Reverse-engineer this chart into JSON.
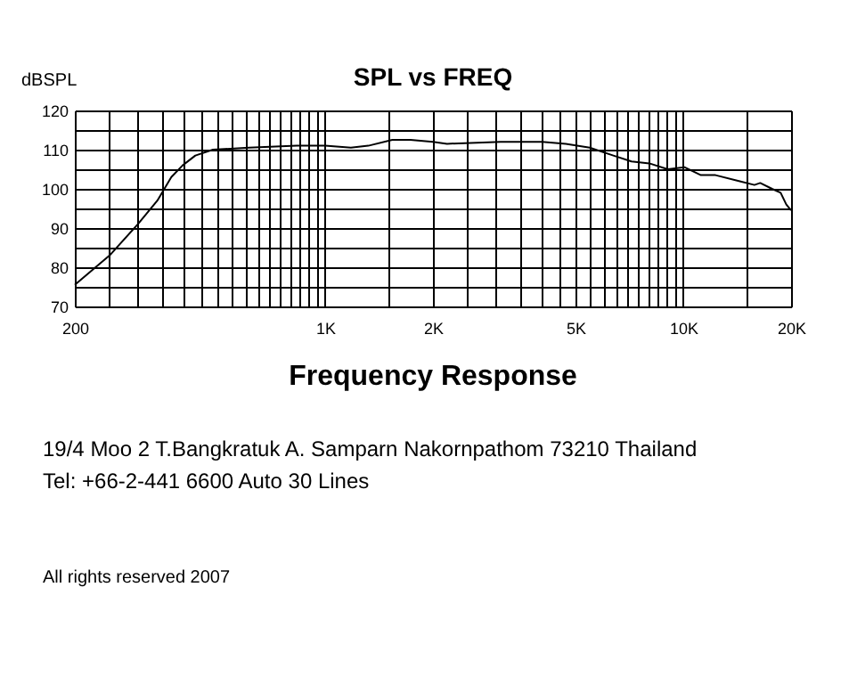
{
  "chart_data": {
    "type": "line",
    "title": "SPL vs FREQ",
    "ylabel": "dBSPL",
    "xlabel": "Frequency Response",
    "log": "x",
    "grid": true,
    "marker": "none",
    "line_style": "solid",
    "xlim": [
      200,
      20000
    ],
    "ylim": [
      70,
      120
    ],
    "xticks": [
      {
        "value": 200,
        "label": "200"
      },
      {
        "value": 250,
        "label": null
      },
      {
        "value": 300,
        "label": null
      },
      {
        "value": 350,
        "label": null
      },
      {
        "value": 400,
        "label": null
      },
      {
        "value": 450,
        "label": null
      },
      {
        "value": 500,
        "label": null
      },
      {
        "value": 550,
        "label": null
      },
      {
        "value": 600,
        "label": null
      },
      {
        "value": 650,
        "label": null
      },
      {
        "value": 700,
        "label": null
      },
      {
        "value": 750,
        "label": null
      },
      {
        "value": 800,
        "label": null
      },
      {
        "value": 850,
        "label": null
      },
      {
        "value": 900,
        "label": null
      },
      {
        "value": 950,
        "label": null
      },
      {
        "value": 1000,
        "label": "1K"
      },
      {
        "value": 1500,
        "label": null
      },
      {
        "value": 2000,
        "label": "2K"
      },
      {
        "value": 2500,
        "label": null
      },
      {
        "value": 3000,
        "label": null
      },
      {
        "value": 3500,
        "label": null
      },
      {
        "value": 4000,
        "label": null
      },
      {
        "value": 4500,
        "label": null
      },
      {
        "value": 5000,
        "label": "5K"
      },
      {
        "value": 5500,
        "label": null
      },
      {
        "value": 6000,
        "label": null
      },
      {
        "value": 6500,
        "label": null
      },
      {
        "value": 7000,
        "label": null
      },
      {
        "value": 7500,
        "label": null
      },
      {
        "value": 8000,
        "label": null
      },
      {
        "value": 8500,
        "label": null
      },
      {
        "value": 9000,
        "label": null
      },
      {
        "value": 9500,
        "label": null
      },
      {
        "value": 10000,
        "label": "10K"
      },
      {
        "value": 15000,
        "label": null
      },
      {
        "value": 20000,
        "label": "20K"
      }
    ],
    "yticks": [
      70,
      {
        "value": 75,
        "label": null
      },
      80,
      {
        "value": 85,
        "label": null
      },
      90,
      {
        "value": 95,
        "label": null
      },
      100,
      {
        "value": 105,
        "label": null
      },
      110,
      {
        "value": 115,
        "label": null
      },
      120
    ],
    "series": [
      {
        "color": "#000000",
        "x": [
          200,
          250,
          300,
          340,
          372,
          400,
          434,
          486,
          613,
          833,
          1000,
          1180,
          1320,
          1540,
          1730,
          2000,
          2190,
          3090,
          4040,
          4700,
          5480,
          6380,
          7170,
          8040,
          9050,
          10100,
          11200,
          12300,
          14300,
          15800,
          16400,
          17700,
          18700,
          19400,
          20000
        ],
        "values": [
          75.5,
          83,
          91,
          97,
          103,
          106,
          108.5,
          110,
          110.5,
          111,
          111,
          110.5,
          111,
          112.5,
          112.5,
          112,
          111.5,
          112,
          112,
          111.5,
          110.5,
          108.5,
          107,
          106.5,
          105,
          105.5,
          103.5,
          103.5,
          102,
          101,
          101.5,
          100,
          99,
          96,
          94.5
        ]
      }
    ],
    "annotations": [
      "19/4 Moo 2 T.Bangkratuk A. Samparn Nakornpathom 73210 Thailand",
      "Tel: +66-2-441 6600 Auto 30 Lines",
      "All rights reserved 2007"
    ]
  }
}
